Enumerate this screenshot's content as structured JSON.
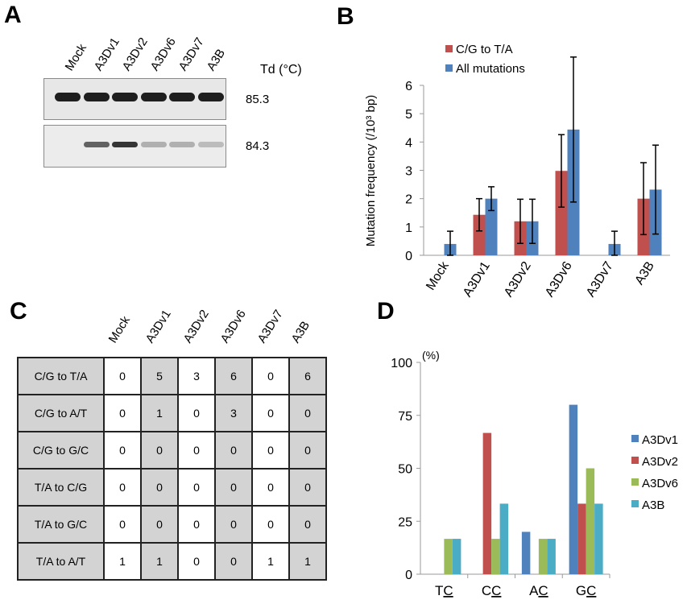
{
  "panels": {
    "A": {
      "letter": "A",
      "lanes": [
        "Mock",
        "A3Dv1",
        "A3Dv2",
        "A3Dv6",
        "A3Dv7",
        "A3B"
      ],
      "td_header": "Td (°C)",
      "gels": [
        {
          "td": "85.3",
          "band_intensity": [
            1.0,
            1.0,
            1.0,
            1.0,
            1.0,
            1.0
          ]
        },
        {
          "td": "84.3",
          "band_intensity": [
            0.0,
            0.7,
            0.9,
            0.35,
            0.35,
            0.3
          ]
        }
      ]
    },
    "B": {
      "letter": "B"
    },
    "C": {
      "letter": "C",
      "columns": [
        "Mock",
        "A3Dv1",
        "A3Dv2",
        "A3Dv6",
        "A3Dv7",
        "A3B"
      ],
      "rows": [
        {
          "label": "C/G to T/A",
          "values": [
            "0",
            "5",
            "3",
            "6",
            "0",
            "6"
          ]
        },
        {
          "label": "C/G to A/T",
          "values": [
            "0",
            "1",
            "0",
            "3",
            "0",
            "0"
          ]
        },
        {
          "label": "C/G to G/C",
          "values": [
            "0",
            "0",
            "0",
            "0",
            "0",
            "0"
          ]
        },
        {
          "label": "T/A to C/G",
          "values": [
            "0",
            "0",
            "0",
            "0",
            "0",
            "0"
          ]
        },
        {
          "label": "T/A to G/C",
          "values": [
            "0",
            "0",
            "0",
            "0",
            "0",
            "0"
          ]
        },
        {
          "label": "T/A to A/T",
          "values": [
            "1",
            "1",
            "0",
            "0",
            "1",
            "1"
          ]
        }
      ]
    },
    "D": {
      "letter": "D"
    }
  },
  "chart_data": [
    {
      "panel": "B",
      "type": "bar",
      "title": "",
      "xlabel": "",
      "ylabel": "Mutation frequency (/10³ bp)",
      "ylim": [
        0,
        6
      ],
      "yticks": [
        0,
        1,
        2,
        3,
        4,
        5,
        6
      ],
      "categories": [
        "Mock",
        "A3Dv1",
        "A3Dv2",
        "A3Dv6",
        "A3Dv7",
        "A3B"
      ],
      "legend_position": "top-left",
      "series": [
        {
          "name": "C/G to T/A",
          "color": "#c0504d",
          "values": [
            0,
            1.43,
            1.2,
            2.98,
            0,
            2.0
          ],
          "error": [
            null,
            0.57,
            0.78,
            1.28,
            null,
            1.27
          ]
        },
        {
          "name": "All mutations",
          "color": "#4f81bd",
          "values": [
            0.4,
            2.0,
            1.2,
            4.44,
            0.4,
            2.32
          ],
          "error": [
            0.45,
            0.42,
            0.78,
            2.56,
            0.45,
            1.57
          ]
        }
      ]
    },
    {
      "panel": "D",
      "type": "bar",
      "title": "",
      "xlabel": "",
      "ylabel": "(%)",
      "ylim": [
        0,
        100
      ],
      "yticks": [
        0,
        25,
        50,
        75,
        100
      ],
      "categories": [
        "TC",
        "CC",
        "AC",
        "GC"
      ],
      "underlined_char_index": 1,
      "legend_position": "right",
      "series": [
        {
          "name": "A3Dv1",
          "color": "#4f81bd",
          "values": [
            0,
            0,
            20,
            80
          ]
        },
        {
          "name": "A3Dv2",
          "color": "#c0504d",
          "values": [
            0,
            66.7,
            0,
            33.3
          ]
        },
        {
          "name": "A3Dv6",
          "color": "#9bbb59",
          "values": [
            16.7,
            16.7,
            16.7,
            50
          ]
        },
        {
          "name": "A3B",
          "color": "#4bacc6",
          "values": [
            16.7,
            33.3,
            16.7,
            33.3
          ]
        }
      ]
    }
  ]
}
